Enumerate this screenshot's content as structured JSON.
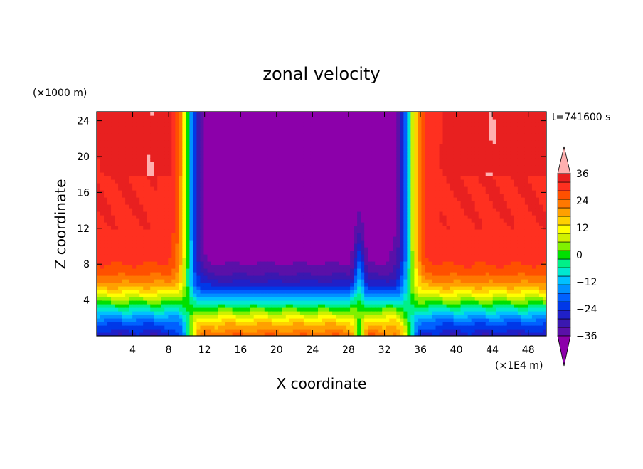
{
  "chart_data": {
    "type": "heatmap",
    "title": "zonal velocity",
    "xlabel": "X coordinate",
    "ylabel": "Z coordinate",
    "x_unit": "(×1E4 m)",
    "y_unit": "(×1000 m)",
    "time_label": "t=741600 s",
    "xlim": [
      0,
      50
    ],
    "ylim": [
      0,
      25
    ],
    "x_ticks": [
      4,
      8,
      12,
      16,
      20,
      24,
      28,
      32,
      36,
      40,
      44,
      48
    ],
    "y_ticks": [
      4,
      8,
      12,
      16,
      20,
      24
    ],
    "colorbar": {
      "levels": [
        -40,
        -36,
        -32,
        -28,
        -24,
        -20,
        -16,
        -12,
        -8,
        -4,
        0,
        4,
        8,
        12,
        16,
        20,
        24,
        28,
        32,
        36,
        40
      ],
      "tick_labels": [
        "36",
        "24",
        "12",
        "0",
        "−12",
        "−24",
        "−36"
      ],
      "tick_values": [
        36,
        24,
        12,
        0,
        -12,
        -24,
        -36
      ],
      "colors": [
        "#8c00aa",
        "#5a10a8",
        "#3a18b0",
        "#2020c8",
        "#0038e8",
        "#0060ff",
        "#0090ff",
        "#00c0ff",
        "#00e8d0",
        "#00f088",
        "#00e000",
        "#80f000",
        "#d0f000",
        "#ffff00",
        "#ffd000",
        "#ffa000",
        "#ff7800",
        "#ff5000",
        "#ff3020",
        "#e82020",
        "#ffb0b0"
      ]
    }
  }
}
